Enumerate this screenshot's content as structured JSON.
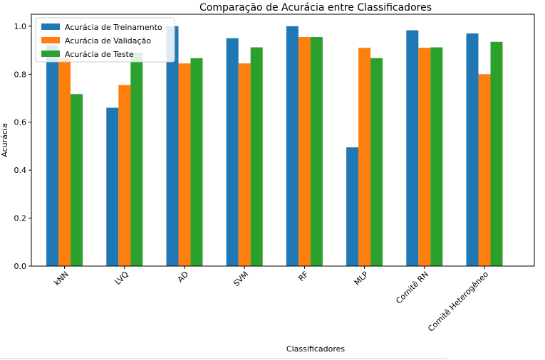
{
  "chart_data": {
    "type": "bar",
    "title": "Comparação de Acurácia entre Classificadores",
    "xlabel": "Classificadores",
    "ylabel": "Acurácia",
    "ylim": [
      0,
      1.0
    ],
    "yticks": [
      "0.0",
      "0.2",
      "0.4",
      "0.6",
      "0.8",
      "1.0"
    ],
    "grid": false,
    "legend_position": "top-left",
    "categories": [
      "kNN",
      "LVQ",
      "AD",
      "SVM",
      "RF",
      "MLP",
      "Comitê RN",
      "Comitê Heterogêneo"
    ],
    "series": [
      {
        "name": "Acurácia de Treinamento",
        "color": "#1f77b4",
        "values": [
          0.92,
          0.66,
          1.0,
          0.95,
          1.0,
          0.495,
          0.983,
          0.97
        ]
      },
      {
        "name": "Acurácia de Validação",
        "color": "#ff7f0e",
        "values": [
          0.87,
          0.755,
          0.845,
          0.845,
          0.955,
          0.91,
          0.91,
          0.8
        ]
      },
      {
        "name": "Acurácia de Teste",
        "color": "#2ca02c",
        "values": [
          0.717,
          0.89,
          0.867,
          0.912,
          0.955,
          0.867,
          0.912,
          0.935
        ]
      }
    ]
  }
}
